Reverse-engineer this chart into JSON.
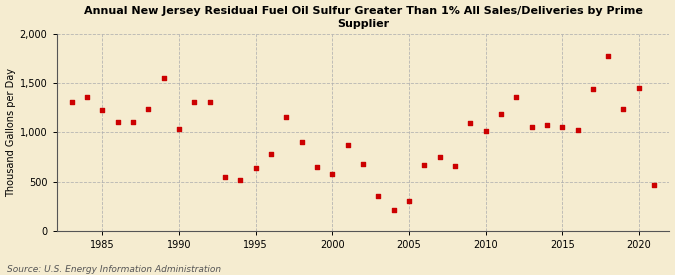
{
  "years": [
    1983,
    1984,
    1985,
    1986,
    1987,
    1988,
    1989,
    1990,
    1991,
    1992,
    1993,
    1994,
    1995,
    1996,
    1997,
    1998,
    1999,
    2000,
    2001,
    2002,
    2003,
    2004,
    2005,
    2006,
    2007,
    2008,
    2009,
    2010,
    2011,
    2012,
    2013,
    2014,
    2015,
    2016,
    2017,
    2018,
    2019,
    2020,
    2021
  ],
  "values": [
    1310,
    1355,
    1230,
    1110,
    1105,
    1240,
    1555,
    1035,
    1310,
    1305,
    545,
    515,
    635,
    785,
    1160,
    900,
    650,
    580,
    870,
    685,
    360,
    215,
    310,
    670,
    750,
    665,
    1100,
    1010,
    1185,
    1360,
    1050,
    1080,
    1060,
    1020,
    1440,
    1770,
    1240,
    1450,
    470
  ],
  "title_line1": "Annual New Jersey Residual Fuel Oil Sulfur Greater Than 1% All Sales/Deliveries by Prime",
  "title_line2": "Supplier",
  "ylabel": "Thousand Gallons per Day",
  "source": "Source: U.S. Energy Information Administration",
  "bg_color": "#f5ecd0",
  "plot_bg_color": "#f5ecd0",
  "marker_color": "#cc0000",
  "grid_color": "#b0b0b0",
  "ylim": [
    0,
    2000
  ],
  "yticks": [
    0,
    500,
    1000,
    1500,
    2000
  ],
  "xticks": [
    1985,
    1990,
    1995,
    2000,
    2005,
    2010,
    2015,
    2020
  ],
  "xlim": [
    1982,
    2022
  ]
}
